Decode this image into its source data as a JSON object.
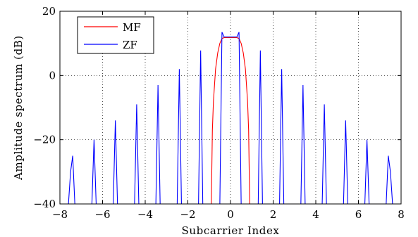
{
  "chart_data": {
    "type": "line",
    "title": "",
    "xlabel": "Subcarrier Index",
    "ylabel": "Amplitude spectrum (dB)",
    "xlim": [
      -8,
      8
    ],
    "ylim": [
      -40,
      20
    ],
    "xticks": [
      -8,
      -6,
      -4,
      -2,
      0,
      2,
      4,
      6,
      8
    ],
    "yticks": [
      -40,
      -20,
      0,
      20
    ],
    "xtick_labels": [
      "−8",
      "−6",
      "−4",
      "−2",
      "0",
      "2",
      "4",
      "6",
      "8"
    ],
    "ytick_labels": [
      "−40",
      "−20",
      "0",
      "20"
    ],
    "grid": true,
    "legend_position": "top-left",
    "series": [
      {
        "name": "MF",
        "color": "#ff0000",
        "x": [
          -1.0,
          -0.9,
          -0.85,
          -0.8,
          -0.7,
          -0.6,
          -0.5,
          -0.4,
          -0.3,
          -0.2,
          -0.1,
          0.0,
          0.1,
          0.2,
          0.3,
          0.4,
          0.5,
          0.6,
          0.7,
          0.8,
          0.85,
          0.9,
          1.0
        ],
        "y": [
          -40,
          -40,
          -17,
          -8,
          2,
          7,
          10,
          11.5,
          11.8,
          11.8,
          11.8,
          11.8,
          11.8,
          11.8,
          11.8,
          11.5,
          10,
          7,
          2,
          -8,
          -17,
          -40,
          -40
        ]
      },
      {
        "name": "ZF",
        "color": "#0000ff",
        "x": [
          -7.6,
          -7.5,
          -7.4,
          -7.3,
          -7.0,
          -6.5,
          -6.4,
          -6.3,
          -6.2,
          -5.5,
          -5.4,
          -5.3,
          -5.2,
          -4.5,
          -4.4,
          -4.3,
          -4.2,
          -3.5,
          -3.4,
          -3.3,
          -3.2,
          -2.5,
          -2.4,
          -2.3,
          -2.2,
          -1.5,
          -1.4,
          -1.3,
          -1.2,
          -0.5,
          -0.4,
          -0.3,
          0.3,
          0.4,
          0.5,
          1.2,
          1.3,
          1.4,
          1.5,
          2.2,
          2.3,
          2.4,
          2.5,
          3.2,
          3.3,
          3.4,
          3.5,
          4.2,
          4.3,
          4.4,
          4.5,
          5.2,
          5.3,
          5.4,
          5.5,
          6.2,
          6.3,
          6.4,
          6.5,
          7.0,
          7.3,
          7.4,
          7.5,
          7.6
        ],
        "y": [
          -40,
          -30,
          -25,
          -40,
          -40,
          -40,
          -20,
          -40,
          -40,
          -40,
          -14,
          -40,
          -40,
          -40,
          -9,
          -40,
          -40,
          -40,
          -3,
          -40,
          -40,
          -40,
          2,
          -40,
          -40,
          -40,
          7.8,
          -40,
          -40,
          -40,
          13.5,
          12,
          12,
          13.5,
          -40,
          -40,
          -40,
          7.8,
          -40,
          -40,
          -40,
          2,
          -40,
          -40,
          -40,
          -3,
          -40,
          -40,
          -40,
          -9,
          -40,
          -40,
          -40,
          -14,
          -40,
          -40,
          -40,
          -20,
          -40,
          -40,
          -40,
          -25,
          -30,
          -40
        ]
      }
    ]
  }
}
